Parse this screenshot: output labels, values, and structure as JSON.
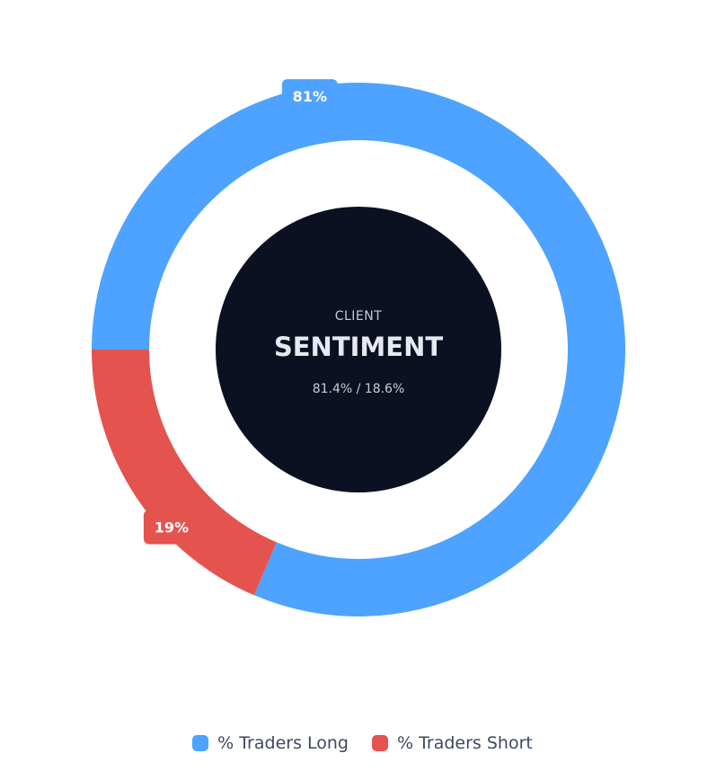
{
  "chart_data": {
    "type": "pie",
    "categories": [
      "% Traders Long",
      "% Traders Short"
    ],
    "values": [
      81.4,
      18.6
    ],
    "colors": [
      "#4da3ff",
      "#e5534f"
    ],
    "data_labels": [
      "81%",
      "19%"
    ],
    "legend_position": "bottom",
    "center": {
      "kicker": "CLIENT",
      "title": "SENTIMENT",
      "subtitle": "81.4% / 18.6%",
      "background": "#0b1120"
    }
  }
}
